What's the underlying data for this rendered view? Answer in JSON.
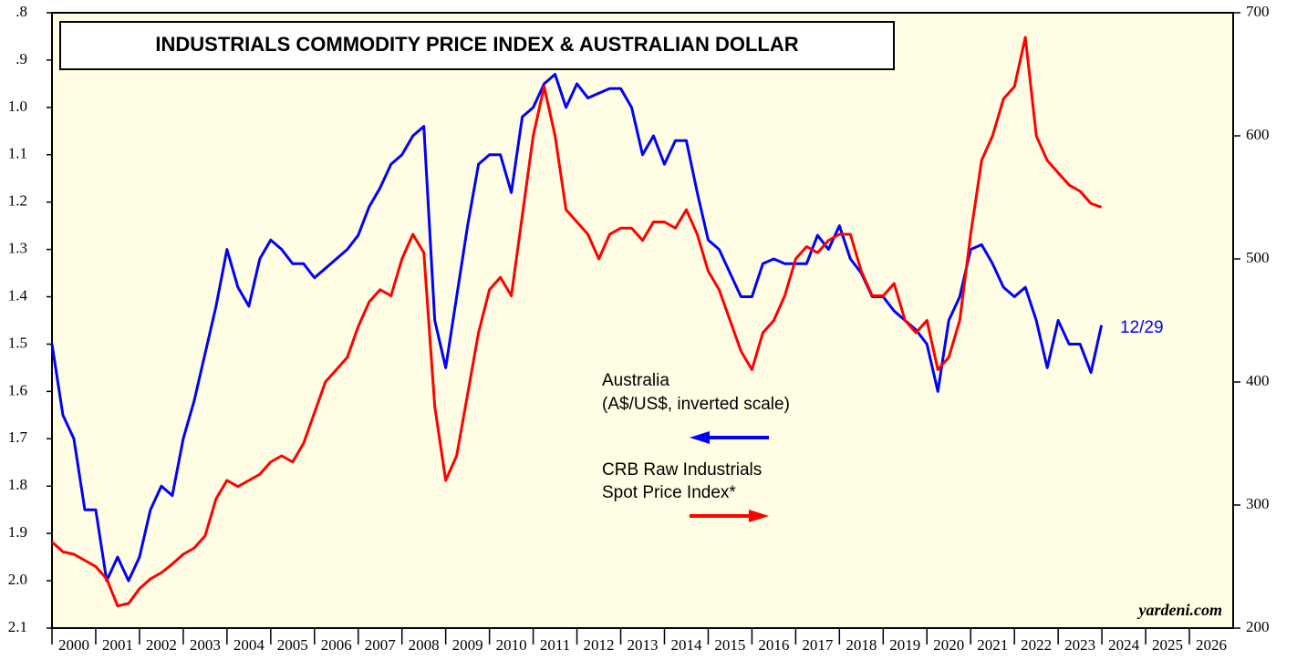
{
  "chart_data": {
    "type": "line",
    "title": "INDUSTRIALS COMMODITY PRICE INDEX & AUSTRALIAN DOLLAR",
    "annotations": [
      "Australia",
      "(A$/US$, inverted scale)",
      "CRB Raw Industrials",
      "Spot Price Index*",
      "12/29",
      "yardeni.com"
    ],
    "x": [
      2000,
      2000.25,
      2000.5,
      2000.75,
      2001,
      2001.25,
      2001.5,
      2001.75,
      2002,
      2002.25,
      2002.5,
      2002.75,
      2003,
      2003.25,
      2003.5,
      2003.75,
      2004,
      2004.25,
      2004.5,
      2004.75,
      2005,
      2005.25,
      2005.5,
      2005.75,
      2006,
      2006.25,
      2006.5,
      2006.75,
      2007,
      2007.25,
      2007.5,
      2007.75,
      2008,
      2008.25,
      2008.5,
      2008.75,
      2009,
      2009.25,
      2009.5,
      2009.75,
      2010,
      2010.25,
      2010.5,
      2010.75,
      2011,
      2011.25,
      2011.5,
      2011.75,
      2012,
      2012.25,
      2012.5,
      2012.75,
      2013,
      2013.25,
      2013.5,
      2013.75,
      2014,
      2014.25,
      2014.5,
      2014.75,
      2015,
      2015.25,
      2015.5,
      2015.75,
      2016,
      2016.25,
      2016.5,
      2016.75,
      2017,
      2017.25,
      2017.5,
      2017.75,
      2018,
      2018.25,
      2018.5,
      2018.75,
      2019,
      2019.25,
      2019.5,
      2019.75,
      2020,
      2020.25,
      2020.5,
      2020.75,
      2021,
      2021.25,
      2021.5,
      2021.75,
      2022,
      2022.25,
      2022.5,
      2022.75,
      2023,
      2023.25,
      2023.5,
      2023.75,
      2023.99
    ],
    "series": [
      {
        "name": "Australia",
        "color": "#0000ff",
        "axis": "y",
        "values": [
          1.5,
          1.65,
          1.7,
          1.85,
          1.85,
          2.0,
          1.95,
          2.0,
          1.95,
          1.85,
          1.8,
          1.82,
          1.7,
          1.62,
          1.52,
          1.42,
          1.3,
          1.38,
          1.42,
          1.32,
          1.28,
          1.3,
          1.33,
          1.33,
          1.36,
          1.34,
          1.32,
          1.3,
          1.27,
          1.21,
          1.17,
          1.12,
          1.1,
          1.06,
          1.04,
          1.45,
          1.55,
          1.4,
          1.25,
          1.12,
          1.1,
          1.1,
          1.18,
          1.02,
          1.0,
          0.95,
          0.93,
          1.0,
          0.95,
          0.98,
          0.97,
          0.96,
          0.96,
          1.0,
          1.1,
          1.06,
          1.12,
          1.07,
          1.07,
          1.18,
          1.28,
          1.3,
          1.35,
          1.4,
          1.4,
          1.33,
          1.32,
          1.33,
          1.33,
          1.33,
          1.27,
          1.3,
          1.25,
          1.32,
          1.35,
          1.4,
          1.4,
          1.43,
          1.45,
          1.47,
          1.5,
          1.6,
          1.45,
          1.4,
          1.3,
          1.29,
          1.33,
          1.38,
          1.4,
          1.38,
          1.45,
          1.55,
          1.45,
          1.5,
          1.5,
          1.56,
          1.46
        ]
      },
      {
        "name": "CRB Raw Industrials",
        "color": "#ff0000",
        "axis": "y2",
        "values": [
          270,
          262,
          260,
          255,
          250,
          240,
          218,
          220,
          232,
          240,
          245,
          252,
          260,
          265,
          275,
          305,
          320,
          315,
          320,
          325,
          335,
          340,
          335,
          350,
          375,
          400,
          410,
          420,
          445,
          465,
          475,
          470,
          500,
          520,
          505,
          380,
          320,
          340,
          390,
          440,
          475,
          485,
          470,
          535,
          600,
          640,
          600,
          540,
          530,
          520,
          500,
          520,
          525,
          525,
          515,
          530,
          530,
          525,
          540,
          520,
          490,
          475,
          450,
          425,
          410,
          440,
          450,
          470,
          500,
          510,
          505,
          515,
          520,
          520,
          490,
          470,
          470,
          480,
          450,
          440,
          450,
          410,
          420,
          450,
          520,
          580,
          600,
          630,
          640,
          680,
          600,
          580,
          570,
          560,
          555,
          545,
          542
        ]
      }
    ],
    "xlim": [
      2000,
      2027
    ],
    "xticks": [
      2000,
      2001,
      2002,
      2003,
      2004,
      2005,
      2006,
      2007,
      2008,
      2009,
      2010,
      2011,
      2012,
      2013,
      2014,
      2015,
      2016,
      2017,
      2018,
      2019,
      2020,
      2021,
      2022,
      2023,
      2024,
      2025,
      2026
    ],
    "ylim": [
      0.8,
      2.1
    ],
    "y_inverted": true,
    "yticks": [
      {
        "value": 0.8,
        "label": ".8"
      },
      {
        "value": 0.9,
        "label": ".9"
      },
      {
        "value": 1.0,
        "label": "1.0"
      },
      1.1,
      1.2,
      1.3,
      1.4,
      1.5,
      1.6,
      1.7,
      1.8,
      1.9,
      {
        "value": 2.0,
        "label": "2.0"
      },
      2.1
    ],
    "y2lim": [
      200,
      700
    ],
    "y2ticks": [
      200,
      300,
      400,
      500,
      600,
      700
    ]
  }
}
